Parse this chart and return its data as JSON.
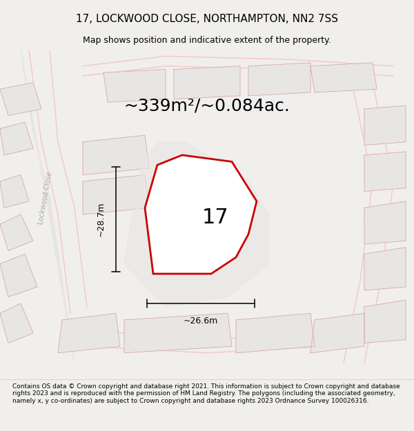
{
  "title": "17, LOCKWOOD CLOSE, NORTHAMPTON, NN2 7SS",
  "subtitle": "Map shows position and indicative extent of the property.",
  "area_text": "~339m²/~0.084ac.",
  "width_label": "~26.6m",
  "height_label": "~28.7m",
  "number_label": "17",
  "footer_text": "Contains OS data © Crown copyright and database right 2021. This information is subject to Crown copyright and database rights 2023 and is reproduced with the permission of HM Land Registry. The polygons (including the associated geometry, namely x, y co-ordinates) are subject to Crown copyright and database rights 2023 Ordnance Survey 100026316.",
  "bg_color": "#f0efed",
  "map_bg": "#f7f6f4",
  "plot_fill": "#ffffff",
  "plot_outline": "#cc0000",
  "road_color": "#f5c6c6",
  "building_color": "#e8e6e3",
  "building_outline": "#d4a0a0",
  "dim_line_color": "#111111",
  "street_label": "Lockwood Close",
  "title_fontsize": 11,
  "subtitle_fontsize": 9,
  "area_fontsize": 18,
  "number_fontsize": 22,
  "footer_fontsize": 6.5
}
